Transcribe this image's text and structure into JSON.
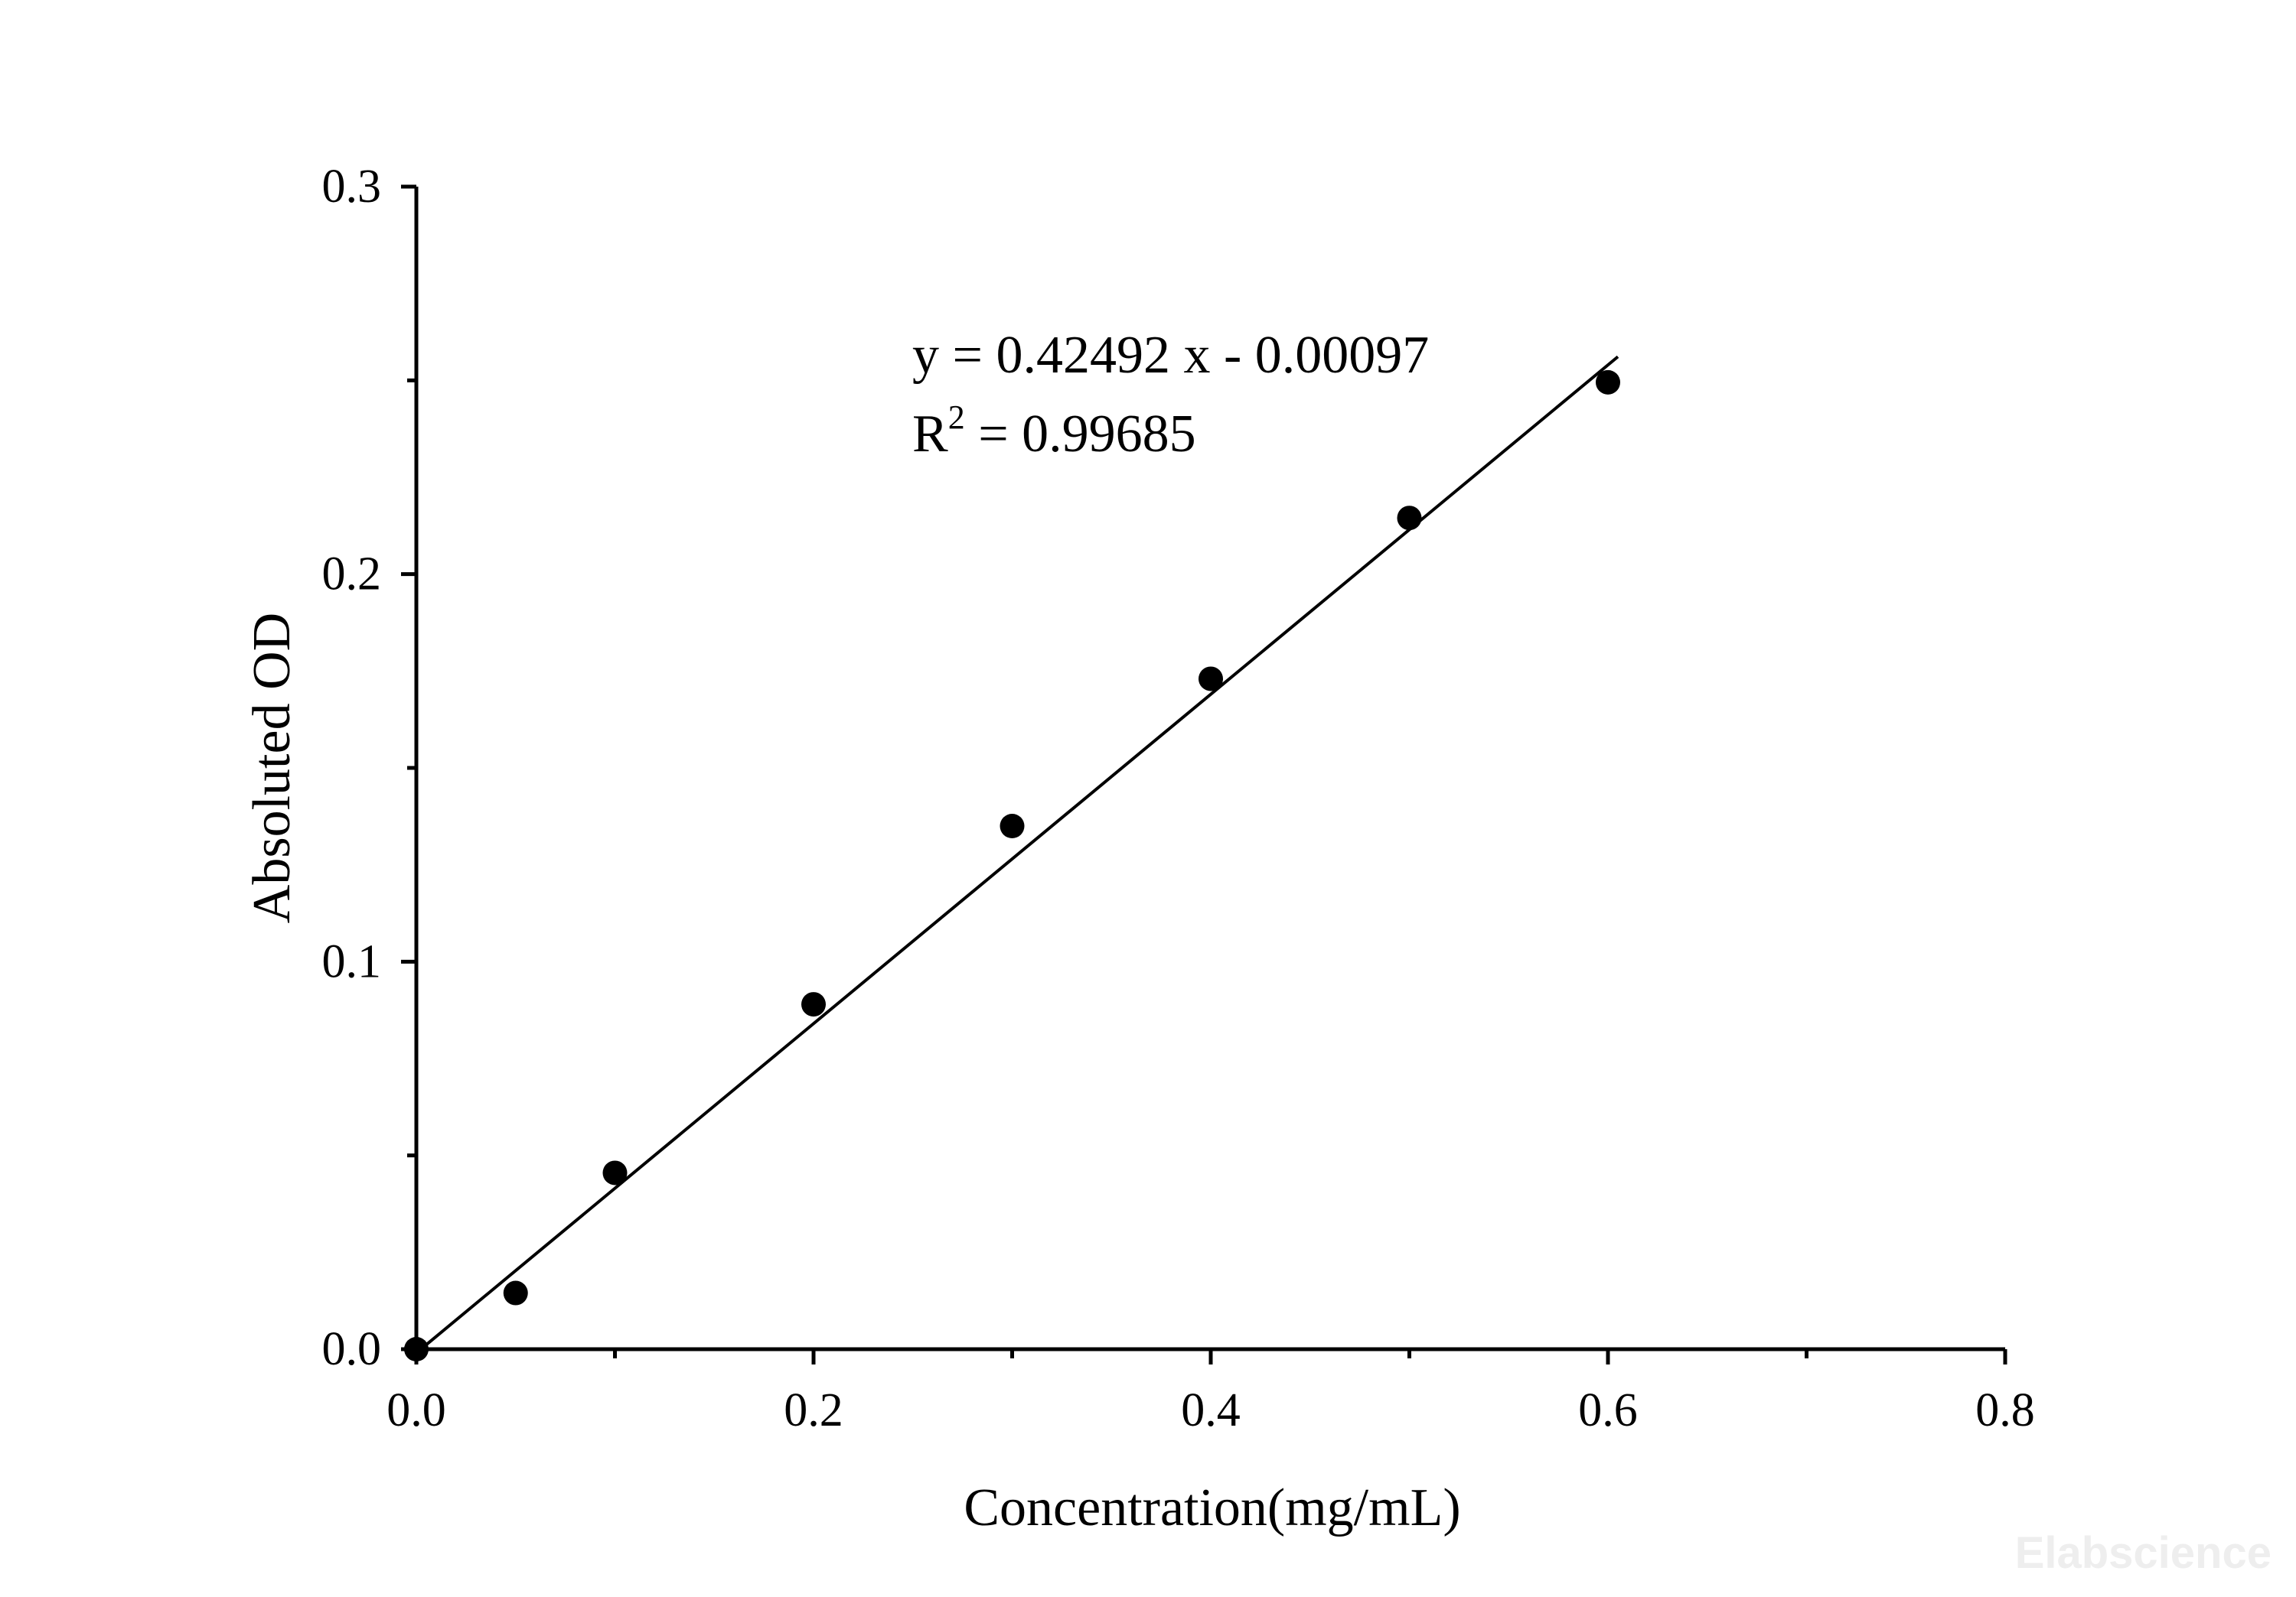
{
  "chart_data": {
    "type": "scatter",
    "xlabel": "Concentration(mg/mL)",
    "ylabel": "Absoluted OD",
    "xlim": [
      0,
      0.8
    ],
    "ylim": [
      0,
      0.3
    ],
    "x_ticks": [
      "0.0",
      "0.2",
      "0.4",
      "0.6",
      "0.8"
    ],
    "y_ticks": [
      "0.0",
      "0.1",
      "0.2",
      "0.3"
    ],
    "x_tick_values": [
      0,
      0.2,
      0.4,
      0.6,
      0.8
    ],
    "y_tick_values": [
      0,
      0.1,
      0.2,
      0.3
    ],
    "x_minor_tick_values": [
      0.1,
      0.3,
      0.5,
      0.7
    ],
    "y_minor_tick_values": [
      0.05,
      0.15,
      0.25
    ],
    "grid": false,
    "series": [
      {
        "x": [
          0,
          0.05,
          0.1,
          0.2,
          0.3,
          0.4,
          0.5,
          0.6
        ],
        "y": [
          0.0,
          0.0145,
          0.0455,
          0.089,
          0.135,
          0.173,
          0.2145,
          0.2495
        ],
        "color": "#000000"
      }
    ],
    "fit_line": {
      "slope": 0.42492,
      "intercept": -0.00097,
      "x_range": [
        0,
        0.605
      ]
    },
    "annotations": {
      "equation": "y = 0.42492 x - 0.00097",
      "r_squared_prefix": "R",
      "r_squared_sup": "2",
      "r_squared_value": " = 0.99685"
    }
  },
  "watermark": "Elabscience"
}
